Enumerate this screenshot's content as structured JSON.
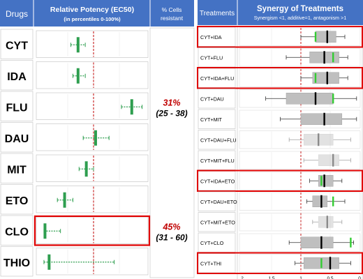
{
  "chart_data": [
    {
      "type": "box",
      "header": {
        "col1": "Drugs",
        "title": "Relative Potency (EC50)",
        "subtitle": "(in percentiles 0-100%)",
        "col3_line1": "% Cells",
        "col3_line2": "resistant"
      },
      "xlim": [
        0,
        100
      ],
      "reference_line": 50,
      "rows": [
        {
          "label": "CYT",
          "median": 35,
          "low": 28,
          "high": 42,
          "highlight": false
        },
        {
          "label": "IDA",
          "median": 35,
          "low": 30,
          "high": 42,
          "highlight": false
        },
        {
          "label": "FLU",
          "median": 87,
          "low": 77,
          "high": 97,
          "highlight": false,
          "resist_pct": "31%",
          "resist_ci": "(25 - 38)"
        },
        {
          "label": "DAU",
          "median": 52,
          "low": 40,
          "high": 65,
          "highlight": false
        },
        {
          "label": "MIT",
          "median": 43,
          "low": 36,
          "high": 50,
          "highlight": false
        },
        {
          "label": "ETO",
          "median": 22,
          "low": 15,
          "high": 30,
          "highlight": false
        },
        {
          "label": "CLO",
          "median": 3,
          "low": 2,
          "high": 18,
          "highlight": true,
          "resist_pct": "45%",
          "resist_ci": "(31 - 60)"
        },
        {
          "label": "THIO",
          "median": 7,
          "low": 2,
          "high": 70,
          "highlight": false
        }
      ],
      "colors": {
        "header_bg": "#4472c4",
        "marker": "#2e9e4f",
        "reference": "#c00000",
        "highlight_border": "#e00000",
        "resist_text": "#c00000"
      }
    },
    {
      "type": "box",
      "header": {
        "col1": "Treatments",
        "title": "Synergy of Treatments",
        "subtitle": "Synergism <1, additive=1, antagonism >1"
      },
      "xlim": [
        2,
        0
      ],
      "xticks": [
        "2",
        "1.5",
        "1",
        "0.5",
        "0"
      ],
      "reference_line": 1,
      "rows": [
        {
          "label": "CYT+IDA",
          "whisker_low": 0.25,
          "q1": 0.4,
          "median": 0.55,
          "q3": 0.75,
          "whisker_high": 1.0,
          "green": 0.75,
          "highlight": true,
          "faded": false
        },
        {
          "label": "CYT+FLU",
          "whisker_low": 0.2,
          "q1": 0.35,
          "median": 0.6,
          "q3": 0.85,
          "whisker_high": 1.25,
          "green": 0.45,
          "highlight": false,
          "faded": false
        },
        {
          "label": "CYT+IDA+FLU",
          "whisker_low": 0.2,
          "q1": 0.35,
          "median": 0.55,
          "q3": 0.8,
          "whisker_high": 1.0,
          "green": 0.75,
          "highlight": true,
          "faded": false
        },
        {
          "label": "CYT+DAU",
          "whisker_low": 0.05,
          "q1": 0.45,
          "median": 0.75,
          "q3": 1.25,
          "whisker_high": 1.6,
          "green": 0.45,
          "highlight": false,
          "faded": false
        },
        {
          "label": "CYT+MIT",
          "whisker_low": 0.05,
          "q1": 0.3,
          "median": 0.6,
          "q3": 1.0,
          "whisker_high": 1.35,
          "green": null,
          "highlight": false,
          "faded": false
        },
        {
          "label": "CYT+DAU+FLU",
          "whisker_low": 0.15,
          "q1": 0.45,
          "median": 0.7,
          "q3": 0.95,
          "whisker_high": 1.2,
          "green": null,
          "highlight": false,
          "faded": true
        },
        {
          "label": "CYT+MIT+FLU",
          "whisker_low": 0.15,
          "q1": 0.35,
          "median": 0.45,
          "q3": 0.7,
          "whisker_high": 0.95,
          "green": null,
          "highlight": false,
          "faded": true
        },
        {
          "label": "CYT+IDA+ETO",
          "whisker_low": 0.3,
          "q1": 0.45,
          "median": 0.6,
          "q3": 0.7,
          "whisker_high": 0.85,
          "green": 0.65,
          "highlight": true,
          "faded": false
        },
        {
          "label": "CYT+DAU+ETO",
          "whisker_low": 0.25,
          "q1": 0.55,
          "median": 0.65,
          "q3": 0.8,
          "whisker_high": 0.9,
          "green": 0.45,
          "highlight": false,
          "faded": false
        },
        {
          "label": "CYT+MIT+ETO",
          "whisker_low": 0.3,
          "q1": 0.45,
          "median": 0.55,
          "q3": 0.7,
          "whisker_high": 0.8,
          "green": null,
          "highlight": false,
          "faded": true
        },
        {
          "label": "CYT+CLO",
          "whisker_low": 0.1,
          "q1": 0.45,
          "median": 0.65,
          "q3": 1.0,
          "whisker_high": 1.2,
          "green": 0.15,
          "highlight": false,
          "faded": false
        },
        {
          "label": "CYT+THI",
          "whisker_low": 0.15,
          "q1": 0.35,
          "median": 0.5,
          "q3": 0.95,
          "whisker_high": 1.1,
          "green": 0.65,
          "highlight": true,
          "faded": false
        }
      ],
      "colors": {
        "header_bg": "#4472c4",
        "box": "#bfbfbf",
        "median": "#000000",
        "green": "#33cc33",
        "reference": "#c00000",
        "highlight_border": "#e00000"
      }
    }
  ]
}
